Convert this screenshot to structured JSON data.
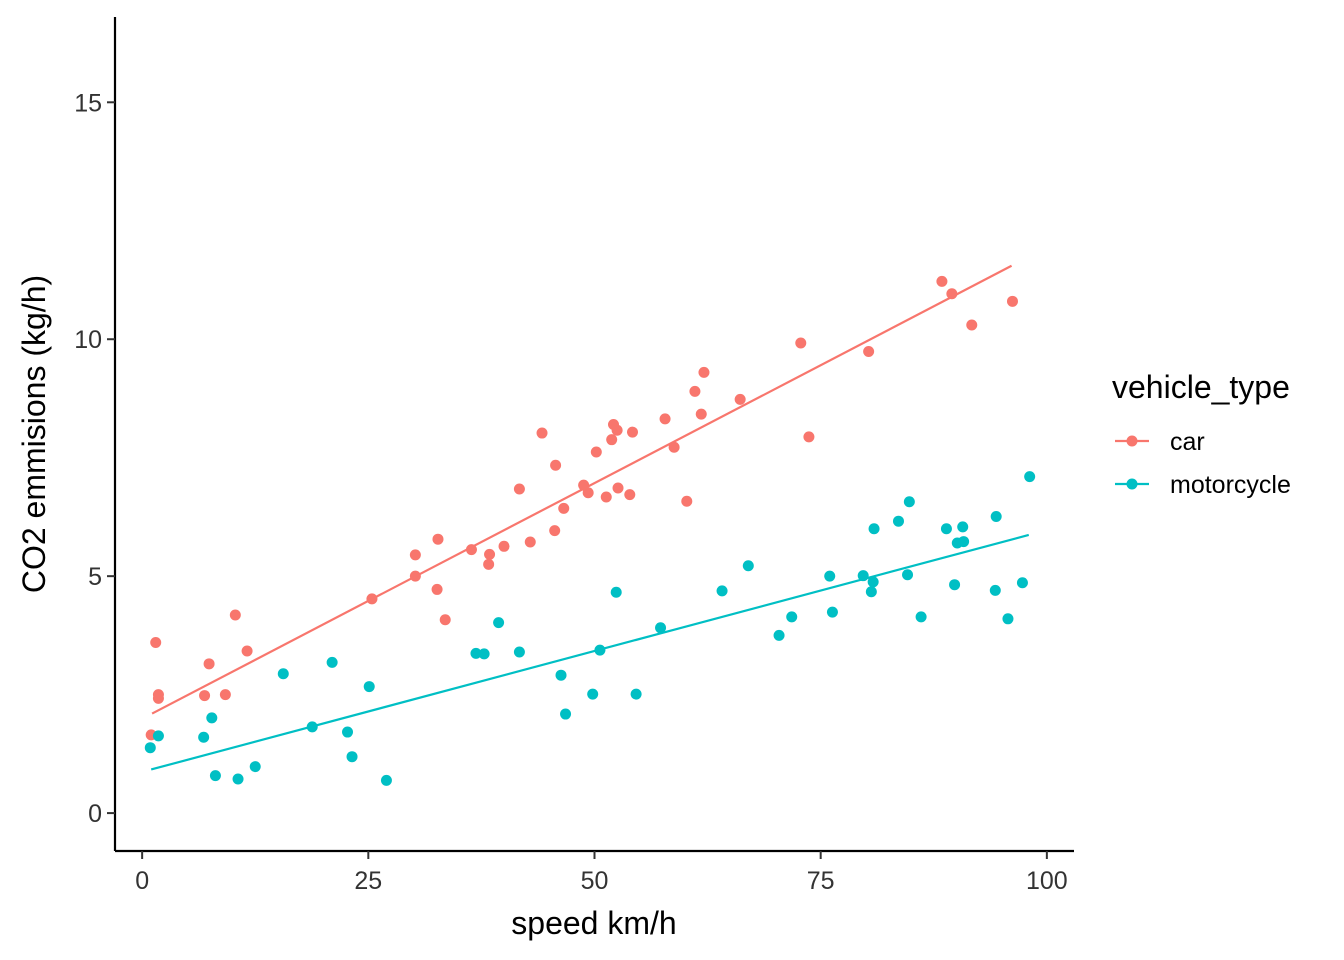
{
  "chart_data": {
    "type": "scatter",
    "title": "",
    "xlabel": "speed km/h",
    "ylabel": "CO2 emmisions (kg/h)",
    "xlim": [
      -3,
      103
    ],
    "ylim": [
      -0.8,
      16.8
    ],
    "xticks": [
      0,
      25,
      50,
      75,
      100
    ],
    "yticks": [
      0,
      5,
      10,
      15
    ],
    "grid": false,
    "legend": {
      "title": "vehicle_type",
      "position": "right"
    },
    "series": [
      {
        "name": "car",
        "color": "#F8766D",
        "fit_line": {
          "x": [
            1.1,
            96.1
          ],
          "y": [
            2.1,
            11.55
          ]
        },
        "points": [
          [
            1.0,
            1.65
          ],
          [
            1.5,
            3.6
          ],
          [
            1.8,
            2.42
          ],
          [
            1.8,
            2.5
          ],
          [
            6.9,
            2.48
          ],
          [
            7.4,
            3.15
          ],
          [
            9.2,
            2.5
          ],
          [
            10.3,
            4.18
          ],
          [
            11.6,
            3.42
          ],
          [
            25.4,
            4.52
          ],
          [
            30.2,
            5.0
          ],
          [
            30.2,
            5.45
          ],
          [
            32.6,
            4.72
          ],
          [
            32.7,
            5.78
          ],
          [
            33.5,
            4.08
          ],
          [
            36.4,
            5.56
          ],
          [
            38.3,
            5.25
          ],
          [
            38.4,
            5.46
          ],
          [
            40.0,
            5.63
          ],
          [
            41.7,
            6.84
          ],
          [
            42.9,
            5.72
          ],
          [
            44.2,
            8.02
          ],
          [
            45.6,
            5.96
          ],
          [
            45.7,
            7.34
          ],
          [
            46.6,
            6.43
          ],
          [
            48.8,
            6.92
          ],
          [
            49.3,
            6.76
          ],
          [
            50.2,
            7.62
          ],
          [
            51.3,
            6.67
          ],
          [
            51.9,
            7.88
          ],
          [
            52.1,
            8.2
          ],
          [
            52.5,
            8.08
          ],
          [
            52.6,
            6.86
          ],
          [
            53.9,
            6.72
          ],
          [
            54.2,
            8.04
          ],
          [
            57.8,
            8.32
          ],
          [
            58.8,
            7.72
          ],
          [
            60.2,
            6.58
          ],
          [
            61.1,
            8.9
          ],
          [
            61.8,
            8.42
          ],
          [
            62.1,
            9.3
          ],
          [
            66.1,
            8.73
          ],
          [
            72.8,
            9.92
          ],
          [
            73.7,
            7.94
          ],
          [
            80.3,
            9.74
          ],
          [
            88.4,
            11.22
          ],
          [
            89.5,
            10.96
          ],
          [
            91.7,
            10.3
          ],
          [
            96.2,
            10.8
          ]
        ]
      },
      {
        "name": "motorcycle",
        "color": "#00BFC4",
        "fit_line": {
          "x": [
            1.0,
            98.0
          ],
          "y": [
            0.92,
            5.87
          ]
        },
        "points": [
          [
            0.9,
            1.38
          ],
          [
            1.8,
            1.63
          ],
          [
            6.8,
            1.6
          ],
          [
            7.7,
            2.01
          ],
          [
            8.1,
            0.79
          ],
          [
            10.6,
            0.72
          ],
          [
            12.5,
            0.98
          ],
          [
            15.6,
            2.94
          ],
          [
            18.8,
            1.82
          ],
          [
            21.0,
            3.18
          ],
          [
            22.7,
            1.71
          ],
          [
            23.2,
            1.19
          ],
          [
            25.1,
            2.67
          ],
          [
            27.0,
            0.69
          ],
          [
            36.9,
            3.37
          ],
          [
            37.8,
            3.36
          ],
          [
            39.4,
            4.02
          ],
          [
            41.7,
            3.4
          ],
          [
            46.3,
            2.91
          ],
          [
            46.8,
            2.09
          ],
          [
            49.8,
            2.51
          ],
          [
            50.6,
            3.44
          ],
          [
            52.4,
            4.66
          ],
          [
            54.6,
            2.51
          ],
          [
            57.3,
            3.91
          ],
          [
            64.1,
            4.69
          ],
          [
            67.0,
            5.22
          ],
          [
            70.4,
            3.75
          ],
          [
            71.8,
            4.14
          ],
          [
            76.0,
            5.0
          ],
          [
            76.3,
            4.24
          ],
          [
            79.7,
            5.01
          ],
          [
            80.6,
            4.67
          ],
          [
            80.8,
            4.88
          ],
          [
            80.9,
            6.0
          ],
          [
            83.6,
            6.16
          ],
          [
            84.6,
            5.03
          ],
          [
            84.8,
            6.57
          ],
          [
            86.1,
            4.14
          ],
          [
            88.9,
            6.0
          ],
          [
            89.8,
            4.82
          ],
          [
            90.1,
            5.7
          ],
          [
            90.7,
            6.04
          ],
          [
            90.8,
            5.73
          ],
          [
            94.3,
            4.7
          ],
          [
            94.4,
            6.26
          ],
          [
            95.7,
            4.1
          ],
          [
            97.3,
            4.86
          ],
          [
            98.1,
            7.1
          ]
        ]
      }
    ]
  }
}
